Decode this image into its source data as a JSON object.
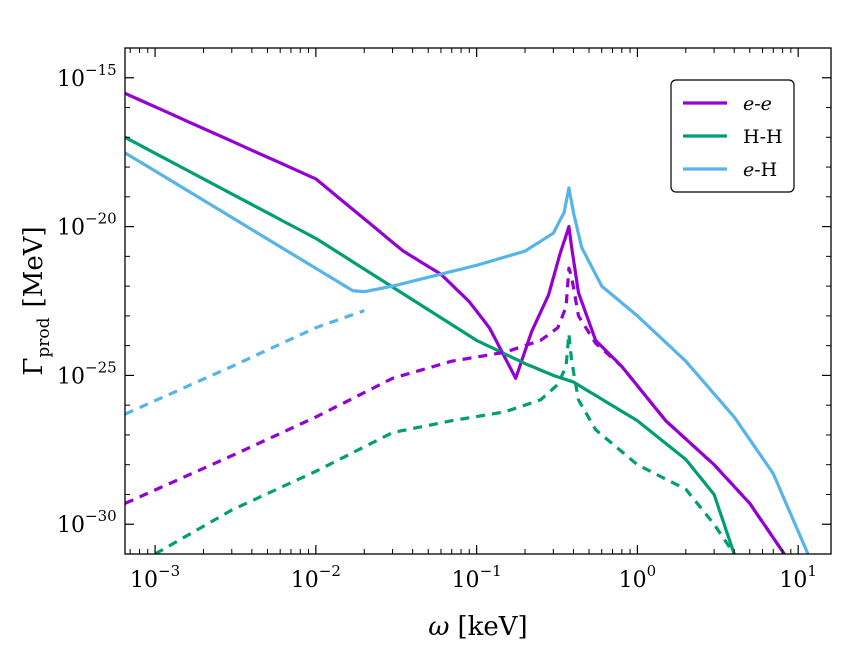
{
  "chart_data": {
    "type": "line",
    "title": "",
    "xlabel": "ω [keV]",
    "ylabel": "Γ_prod [MeV]",
    "xscale": "log",
    "yscale": "log",
    "xlim": [
      0.00065,
      16
    ],
    "ylim": [
      1e-31,
      1e-14
    ],
    "grid": false,
    "legend_position": "top-right",
    "x_ticks": [
      {
        "value": 0.001,
        "base": "10",
        "exp": "−3"
      },
      {
        "value": 0.01,
        "base": "10",
        "exp": "−2"
      },
      {
        "value": 0.1,
        "base": "10",
        "exp": "−1"
      },
      {
        "value": 1,
        "base": "10",
        "exp": "0"
      },
      {
        "value": 10,
        "base": "10",
        "exp": "1"
      }
    ],
    "y_ticks": [
      {
        "value": 1e-15,
        "base": "10",
        "exp": "−15"
      },
      {
        "value": 1e-20,
        "base": "10",
        "exp": "−20"
      },
      {
        "value": 1e-25,
        "base": "10",
        "exp": "−25"
      },
      {
        "value": 1e-30,
        "base": "10",
        "exp": "−30"
      }
    ],
    "series": [
      {
        "name": "e-e",
        "label_a": "e",
        "label_sep": "-",
        "label_b": "e",
        "italic": [
          true,
          true
        ],
        "color": "#9400d3",
        "style": "solid",
        "legend": true,
        "x": [
          0.00065,
          0.01,
          0.035,
          0.06,
          0.09,
          0.12,
          0.15,
          0.175,
          0.22,
          0.28,
          0.33,
          0.36,
          0.375,
          0.39,
          0.43,
          0.55,
          0.8,
          1.5,
          3,
          5,
          8.2
        ],
        "y": [
          3e-16,
          4e-19,
          1.5e-21,
          2.5e-22,
          3e-23,
          4e-24,
          4e-25,
          8e-26,
          3e-24,
          5e-23,
          1.2e-21,
          5e-21,
          1e-20,
          2e-21,
          6e-23,
          1.5e-24,
          2e-25,
          3e-27,
          1e-28,
          5e-30,
          1e-31
        ]
      },
      {
        "name": "H-H",
        "label_a": "H",
        "label_sep": "-",
        "label_b": "H",
        "italic": [
          false,
          false
        ],
        "color": "#009e73",
        "style": "solid",
        "legend": true,
        "x": [
          0.00065,
          0.01,
          0.1,
          0.2,
          0.3,
          0.4,
          1,
          2,
          3,
          4
        ],
        "y": [
          1e-17,
          4e-21,
          1.5e-24,
          2.5e-25,
          1e-25,
          6e-26,
          3e-27,
          1.5e-28,
          1e-29,
          1e-31
        ]
      },
      {
        "name": "e-H",
        "label_a": "e",
        "label_sep": "-",
        "label_b": "H",
        "italic": [
          true,
          false
        ],
        "color": "#56b4e9",
        "style": "solid",
        "legend": true,
        "x": [
          0.00065,
          0.017,
          0.02,
          0.03,
          0.1,
          0.2,
          0.3,
          0.35,
          0.375,
          0.4,
          0.45,
          0.6,
          1,
          2,
          4,
          7,
          11.5
        ],
        "y": [
          3e-18,
          7e-23,
          6.5e-23,
          1e-22,
          5e-22,
          1.5e-21,
          6e-21,
          3e-20,
          2e-19,
          3e-20,
          2e-21,
          1e-22,
          1e-23,
          3e-25,
          4e-27,
          5e-29,
          1e-31
        ]
      },
      {
        "name": "e-e (dashed)",
        "color": "#9400d3",
        "style": "dashed",
        "legend": false,
        "x": [
          0.00065,
          0.003,
          0.01,
          0.03,
          0.07,
          0.15,
          0.25,
          0.32,
          0.36,
          0.375,
          0.39,
          0.43,
          0.55,
          0.8,
          1.5,
          3,
          5,
          8.2
        ],
        "y": [
          5e-30,
          2e-28,
          4e-27,
          8e-26,
          3e-25,
          6e-25,
          1.5e-24,
          4e-24,
          2e-23,
          4e-22,
          2e-22,
          1e-23,
          1.2e-24,
          2e-25,
          3e-27,
          1e-28,
          5e-30,
          1e-31
        ]
      },
      {
        "name": "H-H (dashed)",
        "color": "#009e73",
        "style": "dashed",
        "legend": false,
        "x": [
          0.001,
          0.003,
          0.01,
          0.03,
          0.07,
          0.15,
          0.25,
          0.32,
          0.36,
          0.375,
          0.39,
          0.43,
          0.55,
          1,
          2,
          3,
          4
        ],
        "y": [
          1e-31,
          3e-30,
          6e-29,
          1.2e-27,
          3e-27,
          6e-27,
          1.5e-26,
          5e-26,
          2e-25,
          2.5e-24,
          3e-25,
          1.5e-26,
          1.5e-27,
          1e-28,
          1.5e-29,
          1e-30,
          1e-31
        ]
      },
      {
        "name": "e-H (dashed)",
        "color": "#56b4e9",
        "style": "dashed",
        "legend": false,
        "x": [
          0.00065,
          0.003,
          0.01,
          0.02
        ],
        "y": [
          5e-27,
          2e-25,
          4e-24,
          1.5e-23
        ]
      }
    ]
  }
}
